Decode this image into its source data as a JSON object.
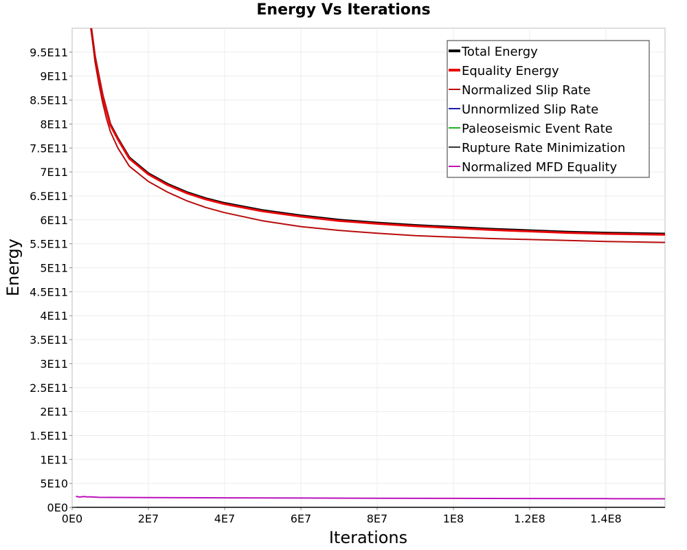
{
  "chart_data": {
    "type": "line",
    "title": "Energy Vs Iterations",
    "xlabel": "Iterations",
    "ylabel": "Energy",
    "xlim": [
      0,
      155500000
    ],
    "ylim": [
      0,
      1000000000000
    ],
    "x_ticks": [
      {
        "value": 0,
        "label": "0E0"
      },
      {
        "value": 20000000,
        "label": "2E7"
      },
      {
        "value": 40000000,
        "label": "4E7"
      },
      {
        "value": 60000000,
        "label": "6E7"
      },
      {
        "value": 80000000,
        "label": "8E7"
      },
      {
        "value": 100000000,
        "label": "1E8"
      },
      {
        "value": 120000000,
        "label": "1.2E8"
      },
      {
        "value": 140000000,
        "label": "1.4E8"
      }
    ],
    "y_ticks": [
      {
        "value": 0,
        "label": "0E0"
      },
      {
        "value": 50000000000,
        "label": "5E10"
      },
      {
        "value": 100000000000,
        "label": "1E11"
      },
      {
        "value": 150000000000,
        "label": "1.5E11"
      },
      {
        "value": 200000000000,
        "label": "2E11"
      },
      {
        "value": 250000000000,
        "label": "2.5E11"
      },
      {
        "value": 300000000000,
        "label": "3E11"
      },
      {
        "value": 350000000000,
        "label": "3.5E11"
      },
      {
        "value": 400000000000,
        "label": "4E11"
      },
      {
        "value": 450000000000,
        "label": "4.5E11"
      },
      {
        "value": 500000000000,
        "label": "5E11"
      },
      {
        "value": 550000000000,
        "label": "5.5E11"
      },
      {
        "value": 600000000000,
        "label": "6E11"
      },
      {
        "value": 650000000000,
        "label": "6.5E11"
      },
      {
        "value": 700000000000,
        "label": "7E11"
      },
      {
        "value": 750000000000,
        "label": "7.5E11"
      },
      {
        "value": 800000000000,
        "label": "8E11"
      },
      {
        "value": 850000000000,
        "label": "8.5E11"
      },
      {
        "value": 900000000000,
        "label": "9E11"
      },
      {
        "value": 950000000000,
        "label": "9.5E11"
      }
    ],
    "grid": true,
    "legend_position": "top-right",
    "series": [
      {
        "name": "Total Energy",
        "color": "#000000",
        "x": [
          5000000,
          6000000,
          7000000,
          8000000,
          9000000,
          10000000,
          12000000,
          15000000,
          20000000,
          25000000,
          30000000,
          35000000,
          40000000,
          50000000,
          60000000,
          70000000,
          80000000,
          90000000,
          100000000,
          110000000,
          120000000,
          130000000,
          140000000,
          155500000
        ],
        "y": [
          1000000000000,
          940000000000,
          900000000000,
          860000000000,
          830000000000,
          800000000000,
          770000000000,
          730000000000,
          697000000000,
          675000000000,
          658000000000,
          645000000000,
          635000000000,
          620000000000,
          609000000000,
          600000000000,
          594000000000,
          589000000000,
          585000000000,
          581000000000,
          578000000000,
          575000000000,
          573000000000,
          571000000000
        ]
      },
      {
        "name": "Equality Energy",
        "color": "#e8080a",
        "x": [
          5000000,
          6000000,
          7000000,
          8000000,
          9000000,
          10000000,
          12000000,
          15000000,
          20000000,
          25000000,
          30000000,
          35000000,
          40000000,
          50000000,
          60000000,
          70000000,
          80000000,
          90000000,
          100000000,
          110000000,
          120000000,
          130000000,
          140000000,
          155500000
        ],
        "y": [
          1000000000000,
          938000000000,
          898000000000,
          858000000000,
          828000000000,
          798000000000,
          768000000000,
          728000000000,
          695000000000,
          673000000000,
          656000000000,
          643000000000,
          633000000000,
          618000000000,
          607000000000,
          598000000000,
          592000000000,
          587000000000,
          583000000000,
          579000000000,
          576000000000,
          573000000000,
          571000000000,
          569000000000
        ]
      },
      {
        "name": "Normalized Slip Rate",
        "color": "#b80a0a",
        "x": [
          5000000,
          6000000,
          7000000,
          8000000,
          9000000,
          10000000,
          12000000,
          15000000,
          20000000,
          25000000,
          30000000,
          35000000,
          40000000,
          50000000,
          60000000,
          70000000,
          80000000,
          90000000,
          100000000,
          110000000,
          120000000,
          130000000,
          140000000,
          155500000
        ],
        "y": [
          1000000000000,
          930000000000,
          885000000000,
          845000000000,
          812000000000,
          785000000000,
          750000000000,
          712000000000,
          680000000000,
          658000000000,
          640000000000,
          626000000000,
          615000000000,
          598000000000,
          586000000000,
          578000000000,
          572000000000,
          567000000000,
          564000000000,
          561000000000,
          559000000000,
          557000000000,
          555000000000,
          553000000000
        ]
      },
      {
        "name": "Unnormlized Slip Rate",
        "color": "#1a1aa8",
        "x": [
          1000000,
          155500000
        ],
        "y": [
          0,
          0
        ]
      },
      {
        "name": "Paleoseismic Event Rate",
        "color": "#22b022",
        "x": [
          1000000,
          155500000
        ],
        "y": [
          0,
          0
        ]
      },
      {
        "name": "Rupture Rate Minimization",
        "color": "#333333",
        "x": [
          1000000,
          155500000
        ],
        "y": [
          0,
          0
        ]
      },
      {
        "name": "Normalized MFD Equality",
        "color": "#bb10bb",
        "x": [
          1000000,
          2000000,
          3000000,
          4000000,
          5000000,
          7000000,
          10000000,
          20000000,
          40000000,
          60000000,
          80000000,
          100000000,
          120000000,
          140000000,
          155500000
        ],
        "y": [
          23000000000,
          21500000000,
          22500000000,
          22000000000,
          21800000000,
          21000000000,
          20800000000,
          20500000000,
          20000000000,
          19500000000,
          19000000000,
          18800000000,
          18500000000,
          18200000000,
          18000000000
        ]
      }
    ]
  }
}
